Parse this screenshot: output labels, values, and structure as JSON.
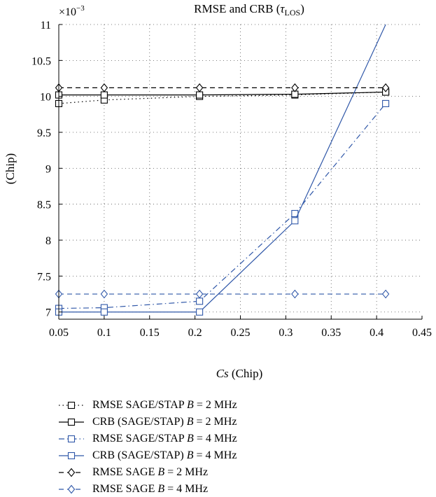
{
  "chart_data": {
    "type": "line",
    "title_main": "RMSE and CRB (",
    "title_symbol": "τ",
    "title_subscript": "LOS",
    "title_close": ")",
    "xlabel_italic": "Cs",
    "xlabel_unit": " (Chip)",
    "ylabel": "(Chip)",
    "y_multiplier_base": "×10",
    "y_multiplier_exp": "−3",
    "xlim": [
      0.05,
      0.45
    ],
    "ylim": [
      6.9,
      11
    ],
    "x_ticks": [
      0.05,
      0.1,
      0.15,
      0.2,
      0.25,
      0.3,
      0.35,
      0.4,
      0.45
    ],
    "x_tick_labels": [
      "0.05",
      "0.1",
      "0.15",
      "0.2",
      "0.25",
      "0.3",
      "0.35",
      "0.4",
      "0.45"
    ],
    "y_ticks": [
      7,
      7.5,
      8,
      8.5,
      9,
      9.5,
      10,
      10.5,
      11
    ],
    "y_tick_labels": [
      "7",
      "7.5",
      "8",
      "8.5",
      "9",
      "9.5",
      "10",
      "10.5",
      "11"
    ],
    "grid": true,
    "legend_position": "below",
    "x": [
      0.05,
      0.1,
      0.205,
      0.31,
      0.41
    ],
    "series": [
      {
        "name": "RMSE SAGE/STAP",
        "b_value": "B",
        "b_unit": " = 2 MHz",
        "color": "#000000",
        "dash": "1.5,4",
        "marker": "square",
        "values": [
          9.9,
          9.95,
          10.0,
          10.02,
          10.06
        ]
      },
      {
        "name": "CRB (SAGE/STAP)",
        "b_value": "B",
        "b_unit": " = 2 MHz",
        "color": "#000000",
        "dash": "",
        "marker": "square",
        "values": [
          10.02,
          10.02,
          10.02,
          10.03,
          10.06
        ]
      },
      {
        "name": "RMSE SAGE/STAP",
        "b_value": "B",
        "b_unit": " = 4 MHz",
        "color": "#2f57a8",
        "dash": "8,4,1.5,4",
        "marker": "square",
        "values": [
          7.05,
          7.06,
          7.15,
          8.37,
          9.9
        ]
      },
      {
        "name": "CRB (SAGE/STAP)",
        "b_value": "B",
        "b_unit": " = 4 MHz",
        "color": "#2f57a8",
        "dash": "",
        "marker": "square",
        "values": [
          7.0,
          7.0,
          7.0,
          8.27,
          11.0
        ],
        "marker_values": [
          7.0,
          7.0,
          7.0,
          8.27,
          null
        ]
      },
      {
        "name": "RMSE SAGE",
        "b_value": "B",
        "b_unit": " = 2 MHz",
        "color": "#000000",
        "dash": "7,5",
        "marker": "diamond",
        "values": [
          10.12,
          10.12,
          10.12,
          10.12,
          10.12
        ]
      },
      {
        "name": "RMSE SAGE",
        "b_value": "B",
        "b_unit": " = 4 MHz",
        "color": "#2f57a8",
        "dash": "7,5",
        "marker": "diamond",
        "values": [
          7.25,
          7.25,
          7.25,
          7.25,
          7.25
        ]
      }
    ]
  }
}
